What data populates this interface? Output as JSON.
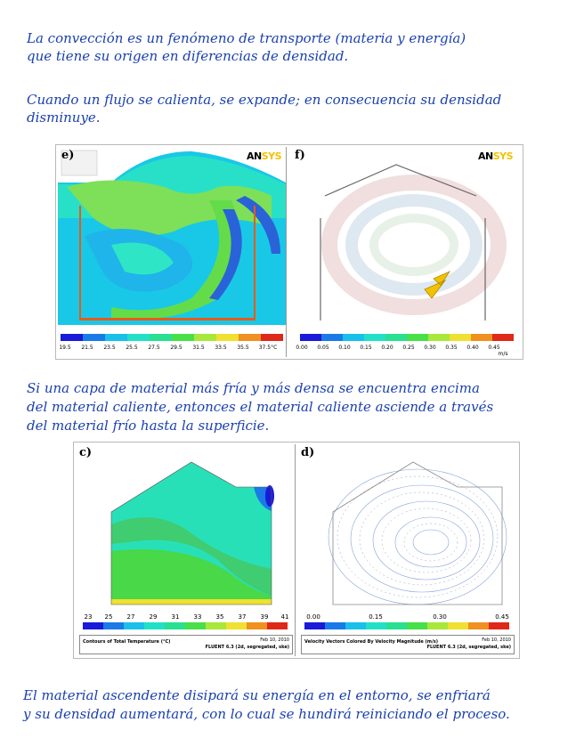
{
  "paragraphs": {
    "p1_line1": "La convección es un fenómeno de transporte (materia y energía)",
    "p1_line2": "que tiene su origen en diferencias de densidad.",
    "p2_line1": "Cuando un flujo se calienta, se expande; en consecuencia su densidad",
    "p2_line2": "disminuye.",
    "p3_line1": "Si una capa de material más fría y más densa se encuentra encima",
    "p3_line2": "del material caliente, entonces el material caliente asciende a través",
    "p3_line3": "del material frío hasta la superficie.",
    "p4_line1": "El material ascendente disipará su energía en el entorno, se enfriará",
    "p4_line2": "y su densidad aumentará, con lo cual se hundirá reiniciando el proceso."
  },
  "figure1": {
    "panel_e": {
      "label": "e)",
      "logo_main": "AN",
      "logo_accent": "SYS",
      "colorbar_ticks": [
        "19.5",
        "21.5",
        "23.5",
        "25.5",
        "27.5",
        "29.5",
        "31.5",
        "33.5",
        "35.5",
        "37.5°C"
      ]
    },
    "panel_f": {
      "label": "f)",
      "logo_main": "AN",
      "logo_accent": "SYS",
      "colorbar_ticks": [
        "0.00",
        "0.05",
        "0.10",
        "0.15",
        "0.20",
        "0.25",
        "0.30",
        "0.35",
        "0.40",
        "0.45"
      ],
      "colorbar_unit": "m/s"
    }
  },
  "figure2": {
    "panel_c": {
      "label": "c)",
      "colorbar_ticks": [
        "23",
        "25",
        "27",
        "29",
        "31",
        "33",
        "35",
        "37",
        "39",
        "41"
      ],
      "caption_left": "Contours of Total Temperature (°C)",
      "caption_date": "Feb 10, 2010",
      "caption_solver": "FLUENT 6.3 (2d, segregated, ske)"
    },
    "panel_d": {
      "label": "d)",
      "colorbar_ticks": [
        "0.00",
        "0.15",
        "0.30",
        "0.45"
      ],
      "caption_left": "Velocity Vectors Colored By Velocity Magnitude (m/s)",
      "caption_date": "Feb 10, 2010",
      "caption_solver": "FLUENT 6.3 (2d, segregated, ske)"
    }
  },
  "colors": {
    "handwriting": "#1a3fb0",
    "arrow_yellow": "#f2c200"
  }
}
